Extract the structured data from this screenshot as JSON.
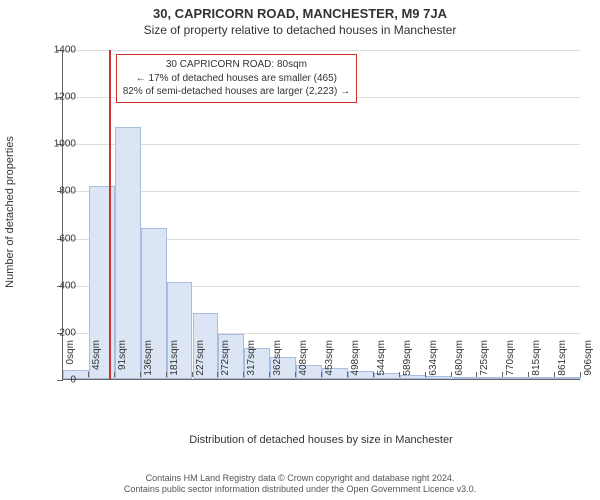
{
  "title": {
    "line1": "30, CAPRICORN ROAD, MANCHESTER, M9 7JA",
    "line2": "Size of property relative to detached houses in Manchester"
  },
  "chart": {
    "type": "histogram",
    "ylim": [
      0,
      1400
    ],
    "ytick_step": 200,
    "y_ticks": [
      0,
      200,
      400,
      600,
      800,
      1000,
      1200,
      1400
    ],
    "y_axis_title": "Number of detached properties",
    "x_axis_title": "Distribution of detached houses by size in Manchester",
    "x_labels": [
      "0sqm",
      "45sqm",
      "91sqm",
      "136sqm",
      "181sqm",
      "227sqm",
      "272sqm",
      "317sqm",
      "362sqm",
      "408sqm",
      "453sqm",
      "498sqm",
      "544sqm",
      "589sqm",
      "634sqm",
      "680sqm",
      "725sqm",
      "770sqm",
      "815sqm",
      "861sqm",
      "906sqm"
    ],
    "bars": [
      40,
      820,
      1070,
      640,
      410,
      280,
      190,
      130,
      95,
      60,
      45,
      35,
      25,
      18,
      12,
      10,
      8,
      6,
      5,
      4
    ],
    "bar_fill": "#dbe5f4",
    "bar_stroke": "#a8bde0",
    "grid_color": "#dddddd",
    "axis_color": "#666666",
    "background_color": "#ffffff",
    "marker": {
      "x_position_sqm": 80,
      "color": "#d03030"
    },
    "callout": {
      "border_color": "#d03030",
      "lines": [
        "30 CAPRICORN ROAD: 80sqm",
        "← 17% of detached houses are smaller (465)",
        "82% of semi-detached houses are larger (2,223) →"
      ]
    }
  },
  "footer": {
    "line1": "Contains HM Land Registry data © Crown copyright and database right 2024.",
    "line2": "Contains public sector information distributed under the Open Government Licence v3.0."
  }
}
